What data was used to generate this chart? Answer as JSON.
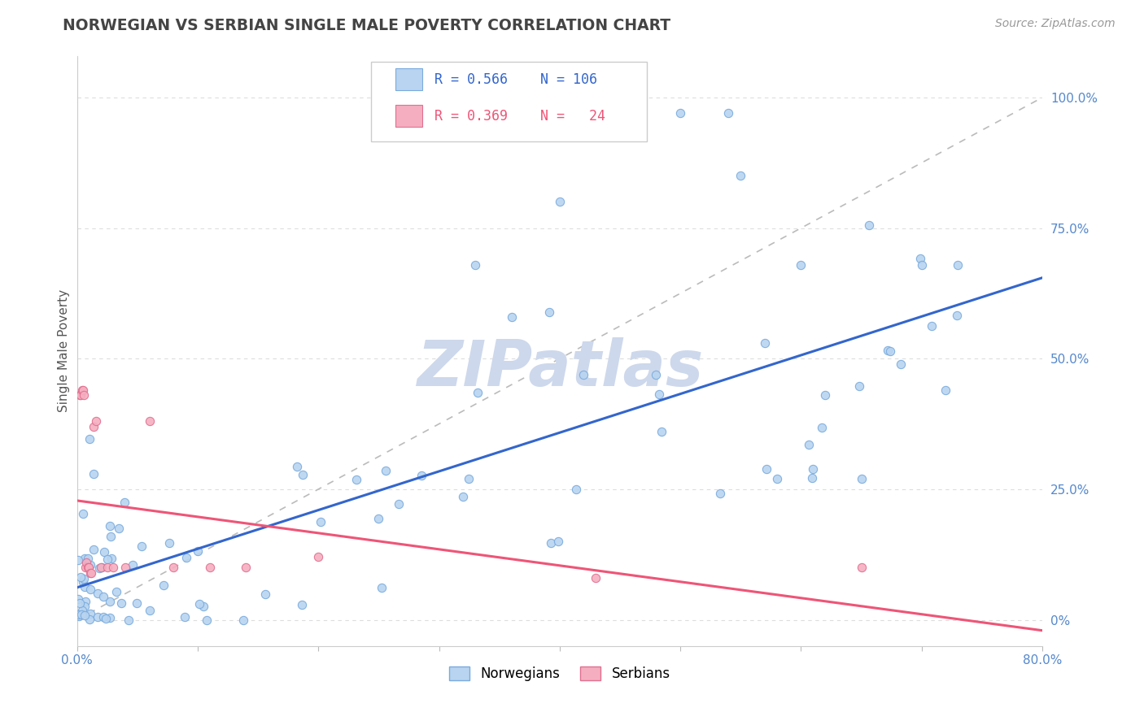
{
  "title": "NORWEGIAN VS SERBIAN SINGLE MALE POVERTY CORRELATION CHART",
  "source_text": "Source: ZipAtlas.com",
  "ylabel": "Single Male Poverty",
  "xmin": 0.0,
  "xmax": 0.8,
  "ymin": -0.05,
  "ymax": 1.08,
  "norwegian_R": 0.566,
  "norwegian_N": 106,
  "serbian_R": 0.369,
  "serbian_N": 24,
  "norwegian_color": "#b8d4f0",
  "norwegian_edge": "#7aabdd",
  "serbian_color": "#f5aec0",
  "serbian_edge": "#e07090",
  "trend_blue": "#3366cc",
  "trend_pink": "#ee5577",
  "trend_dash": "#bbbbbb",
  "watermark_color": "#cdd8ec",
  "background_color": "#ffffff",
  "grid_color": "#dddddd",
  "title_color": "#444444",
  "legend_box_color": "#ffffff",
  "legend_border_color": "#cccccc",
  "right_tick_color": "#5588cc",
  "bottom_tick_color": "#5588cc"
}
